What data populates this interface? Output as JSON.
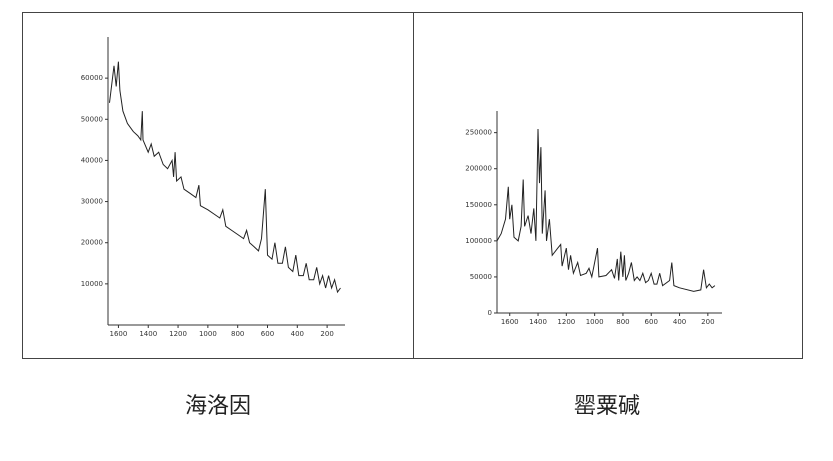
{
  "chart_data": [
    {
      "type": "line",
      "title": "海洛因",
      "x": [
        1660,
        1630,
        1615,
        1600,
        1590,
        1570,
        1540,
        1500,
        1470,
        1450,
        1440,
        1435,
        1400,
        1380,
        1360,
        1330,
        1300,
        1270,
        1240,
        1230,
        1220,
        1210,
        1180,
        1160,
        1120,
        1080,
        1060,
        1050,
        1000,
        960,
        920,
        900,
        880,
        840,
        800,
        760,
        740,
        720,
        690,
        660,
        640,
        615,
        600,
        570,
        550,
        530,
        500,
        480,
        460,
        430,
        410,
        390,
        360,
        340,
        320,
        290,
        270,
        250,
        230,
        210,
        190,
        170,
        150,
        130,
        110
      ],
      "values": [
        54000,
        63000,
        58000,
        64000,
        57000,
        52000,
        49000,
        47000,
        46000,
        45000,
        52000,
        45000,
        42000,
        44000,
        41000,
        42000,
        39000,
        38000,
        40000,
        36000,
        42000,
        35000,
        36000,
        33000,
        32000,
        31000,
        34000,
        29000,
        28000,
        27000,
        26000,
        28000,
        24000,
        23000,
        22000,
        21000,
        23000,
        20000,
        19000,
        18000,
        21000,
        33000,
        17000,
        16000,
        20000,
        15000,
        15000,
        19000,
        14000,
        13000,
        17000,
        12000,
        12000,
        15000,
        11000,
        11000,
        14000,
        10000,
        12000,
        9000,
        12000,
        9000,
        11000,
        8000,
        9000
      ],
      "color": "#222222",
      "xlim": [
        1670,
        80
      ],
      "xticks": [
        1600,
        1400,
        1200,
        1000,
        800,
        600,
        400,
        200
      ],
      "ylim": [
        0,
        70000
      ],
      "yticks": [
        10000,
        20000,
        30000,
        40000,
        50000,
        60000
      ]
    },
    {
      "type": "line",
      "title": "罂粟碱",
      "x": [
        1690,
        1660,
        1630,
        1610,
        1600,
        1585,
        1570,
        1540,
        1520,
        1505,
        1495,
        1470,
        1450,
        1430,
        1415,
        1400,
        1390,
        1380,
        1370,
        1350,
        1340,
        1320,
        1300,
        1260,
        1240,
        1230,
        1200,
        1185,
        1170,
        1150,
        1120,
        1100,
        1060,
        1040,
        1020,
        980,
        970,
        920,
        880,
        860,
        840,
        830,
        815,
        800,
        790,
        780,
        760,
        740,
        720,
        700,
        680,
        660,
        640,
        620,
        600,
        580,
        560,
        540,
        520,
        470,
        455,
        440,
        400,
        300,
        250,
        230,
        210,
        190,
        170,
        150
      ],
      "values": [
        100000,
        110000,
        130000,
        175000,
        130000,
        150000,
        105000,
        100000,
        120000,
        185000,
        120000,
        135000,
        110000,
        145000,
        100000,
        255000,
        180000,
        230000,
        110000,
        170000,
        100000,
        130000,
        80000,
        90000,
        95000,
        65000,
        90000,
        60000,
        80000,
        55000,
        70000,
        52000,
        55000,
        62000,
        50000,
        90000,
        50000,
        52000,
        60000,
        48000,
        75000,
        45000,
        85000,
        50000,
        80000,
        45000,
        55000,
        70000,
        45000,
        50000,
        45000,
        55000,
        42000,
        45000,
        55000,
        40000,
        40000,
        55000,
        38000,
        45000,
        70000,
        38000,
        35000,
        30000,
        32000,
        60000,
        35000,
        40000,
        35000,
        38000
      ],
      "color": "#222222",
      "xlim": [
        1690,
        100
      ],
      "xticks": [
        1600,
        1400,
        1200,
        1000,
        800,
        600,
        400,
        200
      ],
      "ylim": [
        0,
        280000
      ],
      "yticks": [
        0,
        50000,
        100000,
        150000,
        200000,
        250000
      ]
    }
  ]
}
